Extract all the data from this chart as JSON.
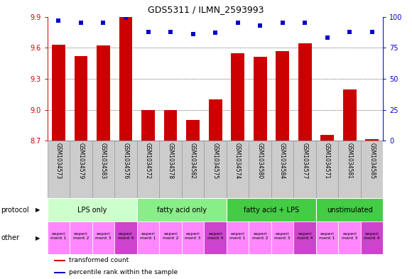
{
  "title": "GDS5311 / ILMN_2593993",
  "samples": [
    "GSM1034573",
    "GSM1034579",
    "GSM1034583",
    "GSM1034576",
    "GSM1034572",
    "GSM1034578",
    "GSM1034582",
    "GSM1034575",
    "GSM1034574",
    "GSM1034580",
    "GSM1034584",
    "GSM1034577",
    "GSM1034571",
    "GSM1034581",
    "GSM1034585"
  ],
  "bar_values": [
    9.63,
    9.52,
    9.62,
    9.9,
    9.0,
    9.0,
    8.9,
    9.1,
    9.55,
    9.51,
    9.57,
    9.64,
    8.76,
    9.2,
    8.72
  ],
  "dot_values": [
    97,
    95,
    95,
    99,
    88,
    88,
    86,
    87,
    95,
    93,
    95,
    95,
    83,
    88,
    88
  ],
  "ylim_left": [
    8.7,
    9.9
  ],
  "ylim_right": [
    0,
    100
  ],
  "yticks_left": [
    8.7,
    9.0,
    9.3,
    9.6,
    9.9
  ],
  "yticks_right": [
    0,
    25,
    50,
    75,
    100
  ],
  "bar_color": "#cc0000",
  "dot_color": "#0000cc",
  "protocol_groups": [
    {
      "label": "LPS only",
      "start": 0,
      "end": 4,
      "color": "#ccffcc"
    },
    {
      "label": "fatty acid only",
      "start": 4,
      "end": 8,
      "color": "#88ee88"
    },
    {
      "label": "fatty acid + LPS",
      "start": 8,
      "end": 12,
      "color": "#44cc44"
    },
    {
      "label": "unstimulated",
      "start": 12,
      "end": 15,
      "color": "#44cc44"
    }
  ],
  "other_cells": [
    {
      "label": "experi\nment 1",
      "col": 0,
      "color": "#ff88ff"
    },
    {
      "label": "experi\nment 2",
      "col": 1,
      "color": "#ff88ff"
    },
    {
      "label": "experi\nment 3",
      "col": 2,
      "color": "#ff88ff"
    },
    {
      "label": "experi\nment 4",
      "col": 3,
      "color": "#cc44cc"
    },
    {
      "label": "experi\nment 1",
      "col": 4,
      "color": "#ff88ff"
    },
    {
      "label": "experi\nment 2",
      "col": 5,
      "color": "#ff88ff"
    },
    {
      "label": "experi\nment 3",
      "col": 6,
      "color": "#ff88ff"
    },
    {
      "label": "experi\nment 4",
      "col": 7,
      "color": "#cc44cc"
    },
    {
      "label": "experi\nment 1",
      "col": 8,
      "color": "#ff88ff"
    },
    {
      "label": "experi\nment 2",
      "col": 9,
      "color": "#ff88ff"
    },
    {
      "label": "experi\nment 3",
      "col": 10,
      "color": "#ff88ff"
    },
    {
      "label": "experi\nment 4",
      "col": 11,
      "color": "#cc44cc"
    },
    {
      "label": "experi\nment 1",
      "col": 12,
      "color": "#ff88ff"
    },
    {
      "label": "experi\nment 3",
      "col": 13,
      "color": "#ff88ff"
    },
    {
      "label": "experi\nment 4",
      "col": 14,
      "color": "#cc44cc"
    }
  ],
  "legend_items": [
    {
      "color": "#cc0000",
      "label": "transformed count"
    },
    {
      "color": "#0000cc",
      "label": "percentile rank within the sample"
    }
  ],
  "xlabel_protocol": "protocol",
  "xlabel_other": "other",
  "bg_color": "#ffffff",
  "tick_label_color_left": "#cc0000",
  "tick_label_color_right": "#0000cc",
  "sample_bg": "#cccccc",
  "sample_border": "#999999"
}
